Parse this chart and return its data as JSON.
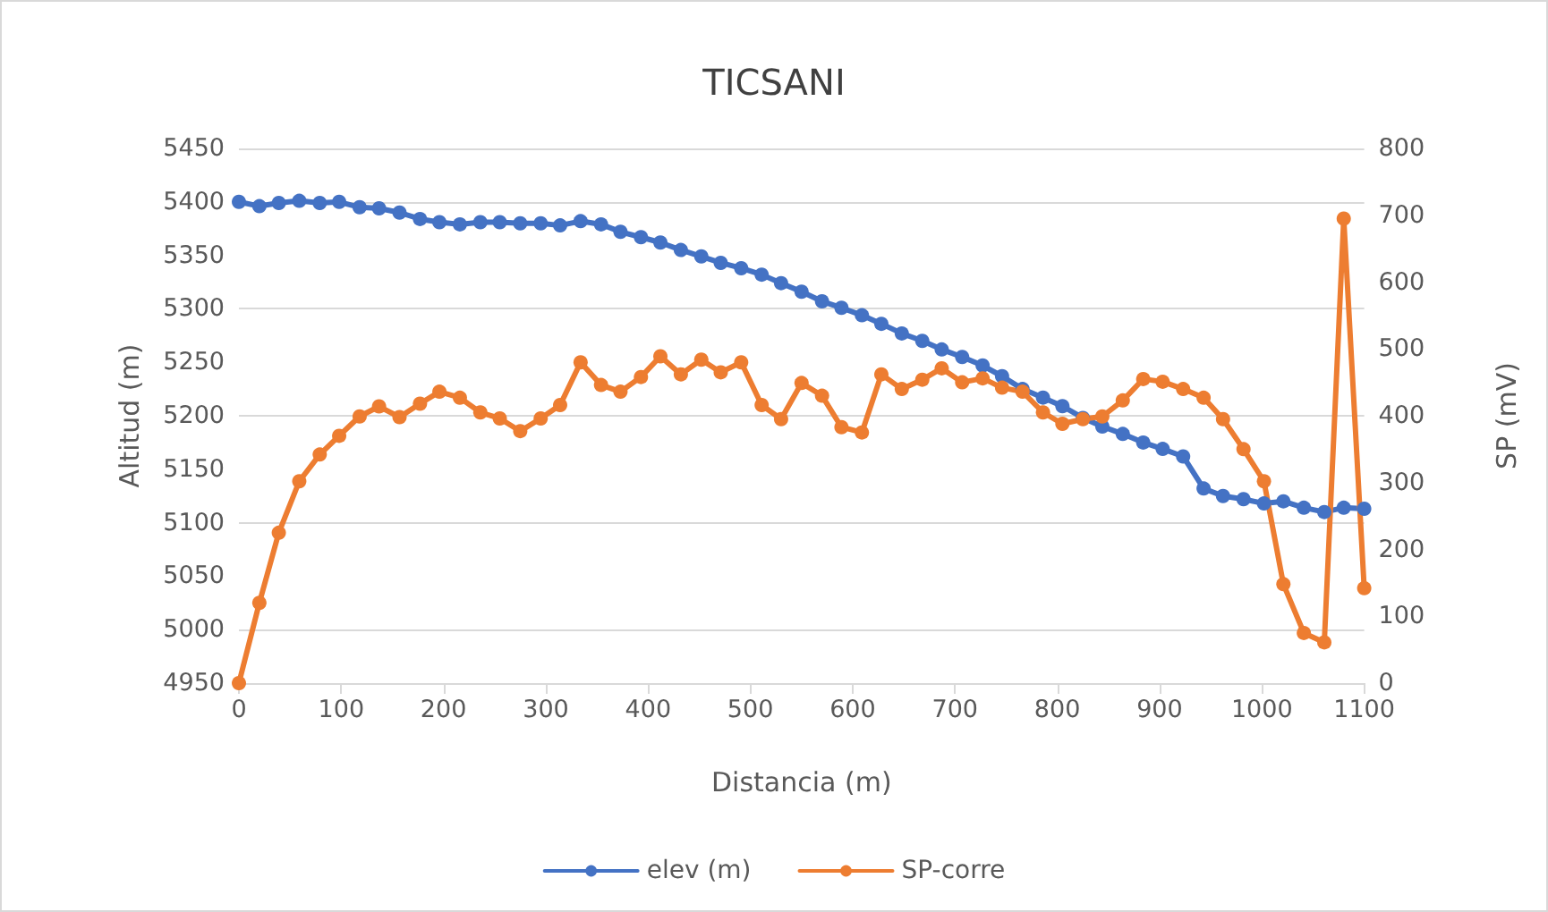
{
  "chart_data": {
    "type": "line",
    "title": "TICSANI",
    "xlabel": "Distancia (m)",
    "ylabel": "Altitud (m)",
    "y2label": "SP (mV)",
    "x": [
      0,
      20,
      39,
      59,
      79,
      98,
      118,
      137,
      157,
      177,
      196,
      216,
      236,
      255,
      275,
      295,
      314,
      334,
      354,
      373,
      393,
      412,
      432,
      452,
      471,
      491,
      511,
      530,
      550,
      570,
      589,
      609,
      628,
      648,
      668,
      687,
      707,
      727,
      746,
      766,
      786,
      805,
      825,
      844,
      864,
      884,
      903,
      923,
      943,
      962,
      982,
      1002,
      1021,
      1041,
      1061,
      1080,
      1100
    ],
    "series": [
      {
        "name": "elev (m)",
        "color": "#4472c4",
        "values": [
          5400,
          5396,
          5399,
          5401,
          5399,
          5400,
          5395,
          5394,
          5390,
          5384,
          5381,
          5379,
          5381,
          5381,
          5380,
          5380,
          5378,
          5382,
          5379,
          5372,
          5367,
          5362,
          5355,
          5349,
          5343,
          5338,
          5332,
          5324,
          5316,
          5307,
          5301,
          5294,
          5286,
          5277,
          5270,
          5262,
          5255,
          5247,
          5237,
          5225,
          5217,
          5209,
          5198,
          5190,
          5183,
          5175,
          5169,
          5162,
          5132,
          5125,
          5122,
          5118,
          5120,
          5114,
          5110,
          5114,
          5113
        ]
      },
      {
        "name": "SP-corre",
        "color": "#ed7d31",
        "axis": "y2",
        "values": [
          0,
          120,
          225,
          302,
          342,
          370,
          399,
          414,
          398,
          418,
          436,
          427,
          405,
          396,
          377,
          396,
          416,
          480,
          446,
          436,
          458,
          489,
          462,
          484,
          465,
          480,
          416,
          395,
          449,
          430,
          383,
          375,
          462,
          440,
          454,
          471,
          450,
          456,
          442,
          436,
          405,
          388,
          395,
          399,
          423,
          455,
          451,
          440,
          427,
          395,
          350,
          302,
          148,
          75,
          61,
          695,
          142
        ]
      }
    ],
    "xlim": [
      0,
      1100
    ],
    "xticks": [
      0,
      100,
      200,
      300,
      400,
      500,
      600,
      700,
      800,
      900,
      1000,
      1100
    ],
    "ylim": [
      4950,
      5450
    ],
    "yticks": [
      4950,
      5000,
      5050,
      5100,
      5150,
      5200,
      5250,
      5300,
      5350,
      5400,
      5450
    ],
    "y2lim": [
      0,
      800
    ],
    "y2ticks": [
      0,
      100,
      200,
      300,
      400,
      500,
      600,
      700,
      800
    ],
    "grid": "y",
    "legend": "bottom",
    "marker": "circle",
    "line_style": "solid"
  }
}
